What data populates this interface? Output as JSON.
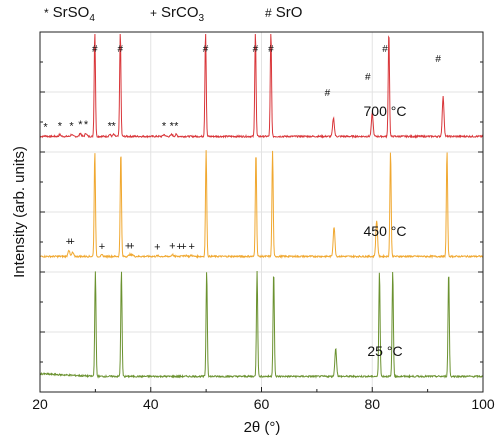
{
  "chart_data": {
    "type": "line",
    "xlabel": "2θ (°)",
    "ylabel": "Intensity (arb. units)",
    "xlim": [
      20,
      100
    ],
    "xticks": [
      20,
      40,
      60,
      80,
      100
    ],
    "grid": true,
    "legend": [
      {
        "symbol": "*",
        "name": "SrSO",
        "sub": "4"
      },
      {
        "symbol": "+",
        "name": "SrCO",
        "sub": "3"
      },
      {
        "symbol": "#",
        "name": "SrO",
        "sub": ""
      }
    ],
    "series": [
      {
        "name": "700 °C",
        "color": "#d9363a",
        "base": 0.13,
        "peaks": [
          [
            21.0,
            0.01
          ],
          [
            23.6,
            0.03
          ],
          [
            25.7,
            0.03
          ],
          [
            27.3,
            0.05
          ],
          [
            28.3,
            0.05
          ],
          [
            29.9,
            1.6
          ],
          [
            32.6,
            0.03
          ],
          [
            33.3,
            0.03
          ],
          [
            34.5,
            1.6
          ],
          [
            42.4,
            0.03
          ],
          [
            43.8,
            0.03
          ],
          [
            44.6,
            0.03
          ],
          [
            49.9,
            1.6
          ],
          [
            58.9,
            1.6
          ],
          [
            61.7,
            1.6
          ],
          [
            73.0,
            0.28
          ],
          [
            80.0,
            0.35
          ],
          [
            83.0,
            1.6
          ],
          [
            92.8,
            0.6
          ]
        ],
        "markers": [
          [
            21.0,
            "*"
          ],
          [
            23.6,
            "*"
          ],
          [
            25.7,
            "*"
          ],
          [
            27.3,
            "*"
          ],
          [
            28.3,
            "*"
          ],
          [
            32.6,
            "*"
          ],
          [
            33.3,
            "*"
          ],
          [
            42.4,
            "*"
          ],
          [
            43.8,
            "*"
          ],
          [
            44.6,
            "*"
          ],
          [
            29.9,
            "#"
          ],
          [
            34.5,
            "#"
          ],
          [
            49.9,
            "#"
          ],
          [
            58.9,
            "#"
          ],
          [
            61.7,
            "#"
          ],
          [
            71.9,
            "#"
          ],
          [
            79.2,
            "#"
          ],
          [
            82.3,
            "#"
          ],
          [
            91.9,
            "#"
          ]
        ]
      },
      {
        "name": "450 °C",
        "color": "#f0a830",
        "base": 0.13,
        "peaks": [
          [
            25.2,
            0.1
          ],
          [
            25.9,
            0.06
          ],
          [
            31.2,
            0.02
          ],
          [
            29.9,
            1.6
          ],
          [
            34.6,
            1.6
          ],
          [
            36.2,
            0.03
          ],
          [
            36.7,
            0.03
          ],
          [
            41.2,
            0.01
          ],
          [
            43.9,
            0.03
          ],
          [
            45.6,
            0.02
          ],
          [
            46.4,
            0.02
          ],
          [
            47.4,
            0.02
          ],
          [
            50.0,
            1.6
          ],
          [
            59.0,
            1.6
          ],
          [
            62.0,
            1.6
          ],
          [
            73.1,
            0.45
          ],
          [
            80.8,
            0.55
          ],
          [
            83.3,
            1.6
          ],
          [
            93.5,
            1.6
          ]
        ],
        "markers": [
          [
            25.2,
            "+"
          ],
          [
            25.7,
            "+"
          ],
          [
            31.2,
            "+"
          ],
          [
            35.9,
            "+"
          ],
          [
            36.5,
            "+"
          ],
          [
            41.2,
            "+"
          ],
          [
            43.9,
            "+"
          ],
          [
            45.2,
            "+"
          ],
          [
            45.9,
            "+"
          ],
          [
            47.4,
            "+"
          ]
        ]
      },
      {
        "name": "25 °C",
        "color": "#6b9230",
        "base": 0.13,
        "peaks": [
          [
            30.0,
            1.6
          ],
          [
            34.7,
            1.6
          ],
          [
            50.1,
            1.6
          ],
          [
            59.2,
            1.6
          ],
          [
            62.2,
            1.6
          ],
          [
            73.4,
            0.42
          ],
          [
            81.3,
            1.6
          ],
          [
            83.7,
            1.6
          ],
          [
            93.8,
            1.6
          ]
        ],
        "markers": []
      }
    ]
  }
}
